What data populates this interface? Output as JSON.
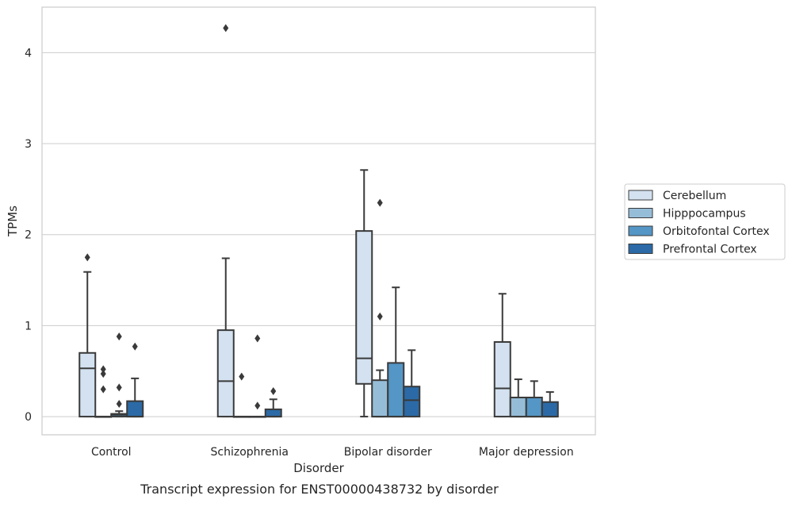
{
  "caption": "Transcript expression for ENST00000438732 by disorder",
  "chart_data": {
    "type": "box",
    "title": "",
    "xlabel": "Disorder",
    "ylabel": "TPMs",
    "ylim": [
      -0.2,
      4.5
    ],
    "yticks": [
      0,
      1,
      2,
      3,
      4
    ],
    "grid": "horizontal",
    "legend_position": "right",
    "categories": [
      "Control",
      "Schizophrenia",
      "Bipolar disorder",
      "Major depression"
    ],
    "colors": {
      "Cerebellum": "#d3e1f0",
      "Hipppocampus": "#96bdd8",
      "Orbitofontal Cortex": "#5496c5",
      "Prefrontal Cortex": "#2b6aa6",
      "line": "#3a3a3a",
      "grid": "#cccccc"
    },
    "series": [
      {
        "name": "Cerebellum",
        "boxes": [
          {
            "category": "Control",
            "q1": 0.0,
            "median": 0.53,
            "q3": 0.7,
            "whisker_low": 0.0,
            "whisker_high": 1.59,
            "outliers": [
              1.75
            ]
          },
          {
            "category": "Schizophrenia",
            "q1": 0.0,
            "median": 0.39,
            "q3": 0.95,
            "whisker_low": 0.0,
            "whisker_high": 1.74,
            "outliers": [
              4.27
            ]
          },
          {
            "category": "Bipolar disorder",
            "q1": 0.36,
            "median": 0.64,
            "q3": 2.04,
            "whisker_low": 0.0,
            "whisker_high": 2.71,
            "outliers": []
          },
          {
            "category": "Major depression",
            "q1": 0.0,
            "median": 0.31,
            "q3": 0.82,
            "whisker_low": 0.0,
            "whisker_high": 1.35,
            "outliers": []
          }
        ]
      },
      {
        "name": "Hipppocampus",
        "boxes": [
          {
            "category": "Control",
            "q1": 0.0,
            "median": 0.0,
            "q3": 0.0,
            "whisker_low": 0.0,
            "whisker_high": 0.0,
            "outliers": [
              0.3,
              0.47,
              0.52
            ]
          },
          {
            "category": "Schizophrenia",
            "q1": 0.0,
            "median": 0.0,
            "q3": 0.0,
            "whisker_low": 0.0,
            "whisker_high": 0.0,
            "outliers": [
              0.44
            ]
          },
          {
            "category": "Bipolar disorder",
            "q1": 0.0,
            "median": 0.0,
            "q3": 0.4,
            "whisker_low": 0.0,
            "whisker_high": 0.51,
            "outliers": [
              1.1,
              2.35
            ]
          },
          {
            "category": "Major depression",
            "q1": 0.0,
            "median": 0.0,
            "q3": 0.21,
            "whisker_low": 0.0,
            "whisker_high": 0.41,
            "outliers": []
          }
        ]
      },
      {
        "name": "Orbitofontal Cortex",
        "boxes": [
          {
            "category": "Control",
            "q1": 0.0,
            "median": 0.02,
            "q3": 0.03,
            "whisker_low": 0.0,
            "whisker_high": 0.06,
            "outliers": [
              0.14,
              0.32,
              0.88
            ]
          },
          {
            "category": "Schizophrenia",
            "q1": 0.0,
            "median": 0.0,
            "q3": 0.0,
            "whisker_low": 0.0,
            "whisker_high": 0.0,
            "outliers": [
              0.12,
              0.86
            ]
          },
          {
            "category": "Bipolar disorder",
            "q1": 0.0,
            "median": 0.0,
            "q3": 0.59,
            "whisker_low": 0.0,
            "whisker_high": 1.42,
            "outliers": []
          },
          {
            "category": "Major depression",
            "q1": 0.0,
            "median": 0.0,
            "q3": 0.21,
            "whisker_low": 0.0,
            "whisker_high": 0.39,
            "outliers": []
          }
        ]
      },
      {
        "name": "Prefrontal Cortex",
        "boxes": [
          {
            "category": "Control",
            "q1": 0.0,
            "median": 0.0,
            "q3": 0.17,
            "whisker_low": 0.0,
            "whisker_high": 0.42,
            "outliers": [
              0.77
            ]
          },
          {
            "category": "Schizophrenia",
            "q1": 0.0,
            "median": 0.0,
            "q3": 0.08,
            "whisker_low": 0.0,
            "whisker_high": 0.19,
            "outliers": [
              0.28
            ]
          },
          {
            "category": "Bipolar disorder",
            "q1": 0.0,
            "median": 0.18,
            "q3": 0.33,
            "whisker_low": 0.0,
            "whisker_high": 0.73,
            "outliers": []
          },
          {
            "category": "Major depression",
            "q1": 0.0,
            "median": 0.0,
            "q3": 0.16,
            "whisker_low": 0.0,
            "whisker_high": 0.27,
            "outliers": []
          }
        ]
      }
    ]
  }
}
